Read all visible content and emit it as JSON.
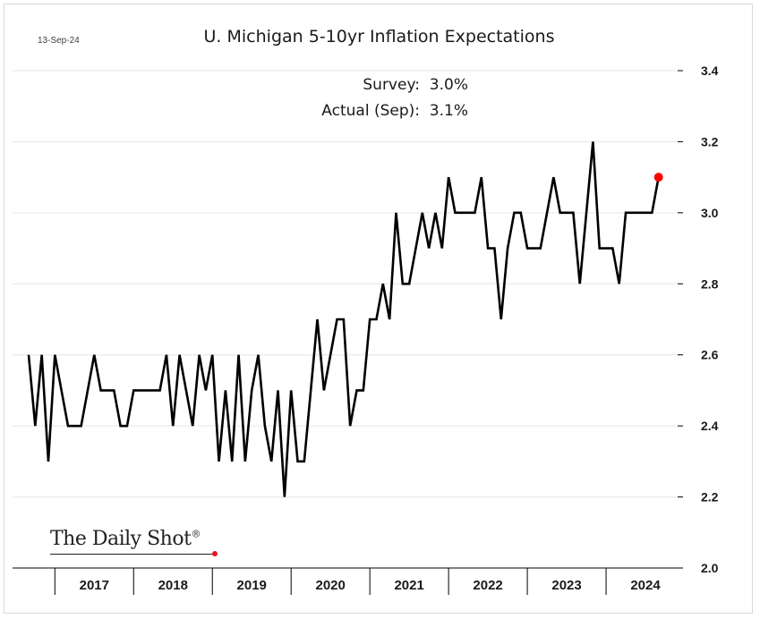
{
  "header": {
    "date": "13-Sep-24",
    "title": "U. Michigan 5-10yr Inflation Expectations"
  },
  "annotations": {
    "survey": "Survey:  3.0%",
    "actual": "Actual (Sep):  3.1%"
  },
  "logo": {
    "text": "The Daily Shot",
    "mark": "®",
    "dot_color": "#e8141e"
  },
  "chart_data": {
    "type": "line",
    "title": "U. Michigan 5-10yr Inflation Expectations",
    "xlabel": "",
    "ylabel": "",
    "ylim": [
      2.0,
      3.4
    ],
    "yticks": [
      "2.0",
      "2.2",
      "2.4",
      "2.6",
      "2.8",
      "3.0",
      "3.2",
      "3.4"
    ],
    "xticks": [
      "2017",
      "2018",
      "2019",
      "2020",
      "2021",
      "2022",
      "2023",
      "2024"
    ],
    "x_start": "2016-09",
    "grid": true,
    "y_axis_position": "right",
    "line_color": "#000000",
    "last_point_color": "#ff0000",
    "series": [
      {
        "values": [
          2.6,
          2.4,
          2.6,
          2.3,
          2.6,
          2.5,
          2.4,
          2.4,
          2.4,
          2.5,
          2.6,
          2.5,
          2.5,
          2.5,
          2.4,
          2.4,
          2.5,
          2.5,
          2.5,
          2.5,
          2.5,
          2.6,
          2.4,
          2.6,
          2.5,
          2.4,
          2.6,
          2.5,
          2.6,
          2.3,
          2.5,
          2.3,
          2.6,
          2.3,
          2.5,
          2.6,
          2.4,
          2.3,
          2.5,
          2.2,
          2.5,
          2.3,
          2.3,
          2.5,
          2.7,
          2.5,
          2.6,
          2.7,
          2.7,
          2.4,
          2.5,
          2.5,
          2.7,
          2.7,
          2.8,
          2.7,
          3.0,
          2.8,
          2.8,
          2.9,
          3.0,
          2.9,
          3.0,
          2.9,
          3.1,
          3.0,
          3.0,
          3.0,
          3.0,
          3.1,
          2.9,
          2.9,
          2.7,
          2.9,
          3.0,
          3.0,
          2.9,
          2.9,
          2.9,
          3.0,
          3.1,
          3.0,
          3.0,
          3.0,
          2.8,
          3.0,
          3.2,
          2.9,
          2.9,
          2.9,
          2.8,
          3.0,
          3.0,
          3.0,
          3.0,
          3.0,
          3.1
        ]
      }
    ]
  }
}
